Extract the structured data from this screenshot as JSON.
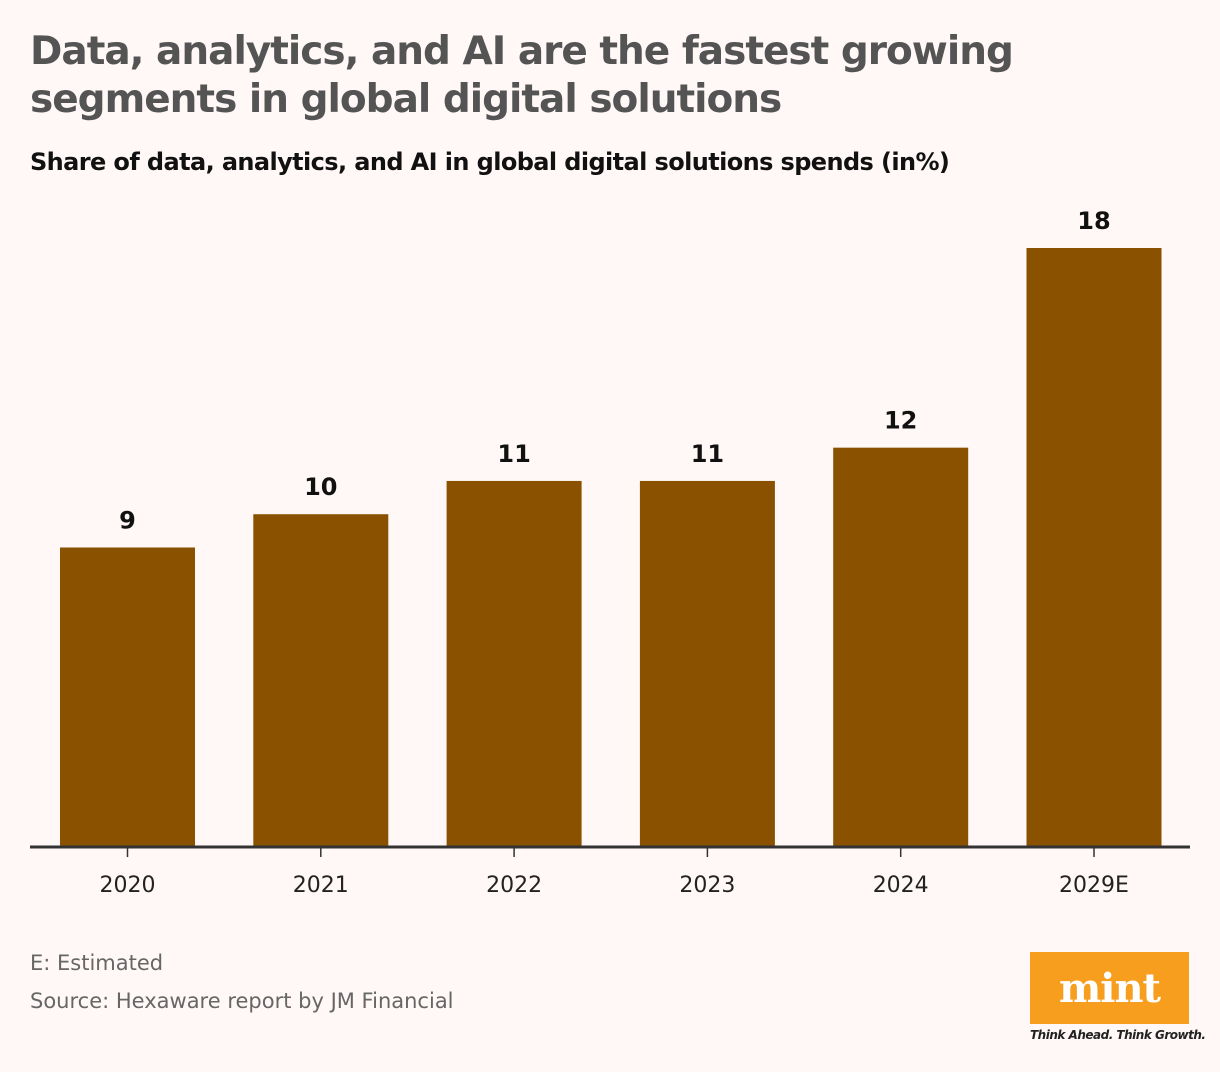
{
  "header": {
    "title": "Data, analytics, and AI are the fastest growing segments in global digital solutions",
    "subtitle": "Share of data, analytics, and AI in global digital solutions spends (in%)"
  },
  "chart_data": {
    "type": "bar",
    "categories": [
      "2020",
      "2021",
      "2022",
      "2023",
      "2024",
      "2029E"
    ],
    "values": [
      9,
      10,
      11,
      11,
      12,
      18
    ],
    "title": "Data, analytics, and AI are the fastest growing segments in global digital solutions",
    "subtitle": "Share of data, analytics, and AI in global digital solutions spends (in%)",
    "xlabel": "",
    "ylabel": "",
    "ylim": [
      0,
      18
    ],
    "grid": false,
    "data_labels": true,
    "bar_color": "#8a5200"
  },
  "footer": {
    "note": "E: Estimated",
    "source": "Source: Hexaware report by JM Financial",
    "logo_text": "mint",
    "logo_tagline": "Think Ahead. Think Growth.",
    "logo_color": "#f79e1f"
  }
}
